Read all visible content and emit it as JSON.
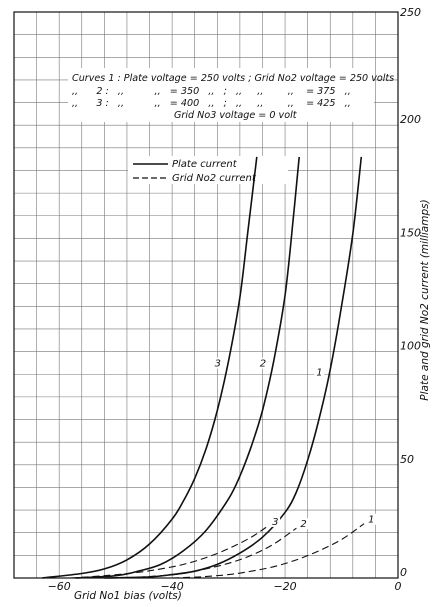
{
  "chart_data": {
    "type": "line",
    "xlabel": "Grid No1 bias (volts)",
    "ylabel": "Plate and grid No2 current  (milliamps)",
    "xlim": [
      -68,
      0
    ],
    "ylim": [
      0,
      250
    ],
    "x_ticks": [
      -60,
      -40,
      -20,
      0
    ],
    "x_tick_labels": [
      "−60",
      "−40",
      "−20",
      "0"
    ],
    "y_ticks": [
      0,
      50,
      100,
      150,
      200,
      250
    ],
    "grid": true,
    "legend_position": "top-center",
    "legend": [
      {
        "label": "Plate current",
        "style": "solid"
      },
      {
        "label": "Grid No2 current",
        "style": "dashed"
      }
    ],
    "notes": [
      "Curves 1 : Plate voltage = 250 volts ; Grid No2 voltage = 250 volts",
      ",,      2 :   ,,          ,,   = 350   ,,   ;   ,,     ,,        ,,    = 375   ,,",
      ",,      3 :   ,,          ,,   = 400   ,,   ;   ,,     ,,        ,,    = 425   ,,",
      "Grid No3 voltage = 0 volt"
    ],
    "series": [
      {
        "label": "1",
        "style": "solid",
        "x": [
          -52,
          -44,
          -40,
          -36,
          -32,
          -28,
          -24,
          -20,
          -18,
          -16,
          -14,
          -12,
          -10,
          -8,
          -6.5
        ],
        "y": [
          0,
          0.5,
          1.5,
          3,
          6,
          11,
          18,
          29,
          38,
          52,
          70,
          92,
          120,
          152,
          186
        ]
      },
      {
        "label": "2",
        "style": "solid",
        "x": [
          -57,
          -50,
          -46,
          -42,
          -38,
          -34,
          -30,
          -28,
          -26,
          -24,
          -22,
          -20,
          -18.5,
          -17.5
        ],
        "y": [
          0,
          1,
          3,
          6,
          12,
          21,
          35,
          45,
          58,
          74,
          96,
          125,
          160,
          186
        ]
      },
      {
        "label": "3",
        "style": "solid",
        "x": [
          -63,
          -56,
          -52,
          -48,
          -44,
          -40,
          -38,
          -36,
          -34,
          -32,
          -30,
          -28,
          -26.5,
          -25
        ],
        "y": [
          0,
          2,
          4,
          8,
          15,
          26,
          34,
          44,
          57,
          74,
          96,
          124,
          155,
          186
        ]
      },
      {
        "label": "1",
        "style": "dashed",
        "x": [
          -40,
          -35,
          -30,
          -26,
          -22,
          -18,
          -14,
          -10,
          -6
        ],
        "y": [
          0,
          0.5,
          1.5,
          3,
          5,
          8,
          12,
          17,
          24
        ]
      },
      {
        "label": "2",
        "style": "dashed",
        "x": [
          -48,
          -42,
          -38,
          -34,
          -30,
          -26,
          -22,
          -18
        ],
        "y": [
          0,
          1,
          2,
          4,
          6.5,
          10,
          15,
          22
        ]
      },
      {
        "label": "3",
        "style": "dashed",
        "x": [
          -58,
          -52,
          -46,
          -42,
          -38,
          -34,
          -30,
          -26,
          -23
        ],
        "y": [
          0,
          1,
          2.5,
          4,
          6,
          9,
          13,
          18,
          23
        ]
      }
    ]
  }
}
